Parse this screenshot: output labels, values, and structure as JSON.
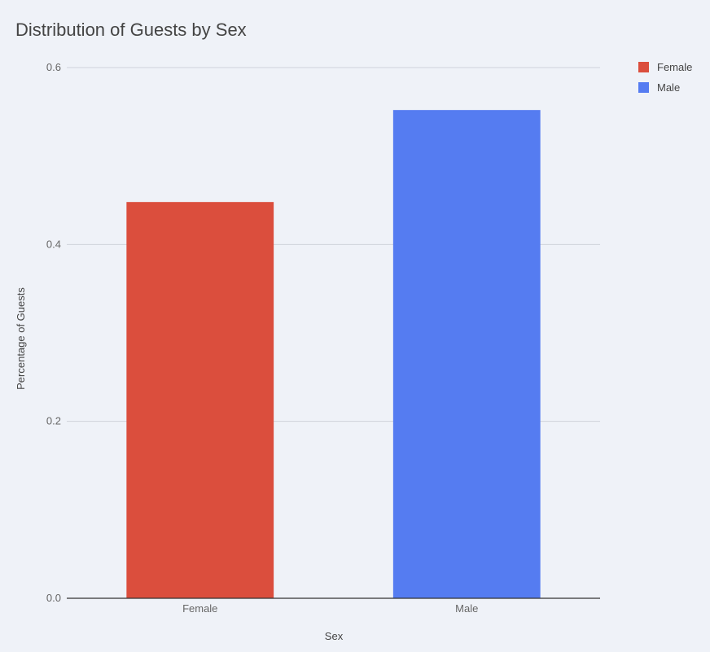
{
  "chart_data": {
    "type": "bar",
    "title": "Distribution of Guests by Sex",
    "xlabel": "Sex",
    "ylabel": "Percentage of Guests",
    "categories": [
      "Female",
      "Male"
    ],
    "values": [
      0.448,
      0.552
    ],
    "colors": [
      "#db4e3d",
      "#557cf1"
    ],
    "ylim": [
      0,
      0.6
    ],
    "yticks": [
      "0.0",
      "0.2",
      "0.4",
      "0.6"
    ],
    "ytick_values": [
      0,
      0.2,
      0.4,
      0.6
    ],
    "grid": true,
    "legend_position": "top-right",
    "legend": [
      {
        "label": "Female",
        "color": "#db4e3d"
      },
      {
        "label": "Male",
        "color": "#557cf1"
      }
    ]
  }
}
